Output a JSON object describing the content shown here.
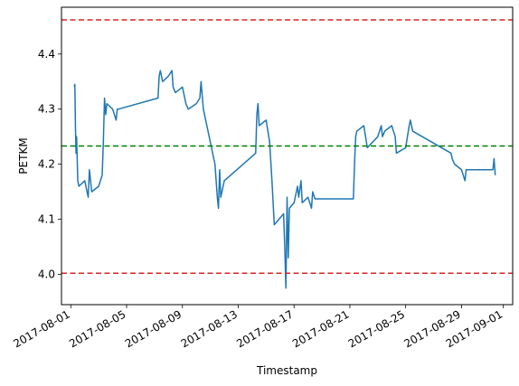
{
  "chart_data": {
    "type": "line",
    "title": "",
    "xlabel": "Timestamp",
    "ylabel": "PETKM",
    "xlim": [
      "2017-07-31T08:00",
      "2017-09-01T16:00"
    ],
    "ylim": [
      3.945,
      4.485
    ],
    "grid": false,
    "legend": "none",
    "x_ticks": [
      "2017-08-01",
      "2017-08-05",
      "2017-08-09",
      "2017-08-13",
      "2017-08-17",
      "2017-08-21",
      "2017-08-25",
      "2017-08-29",
      "2017-09-01"
    ],
    "y_ticks": [
      4.0,
      4.1,
      4.2,
      4.3,
      4.4
    ],
    "y_tick_labels": [
      "4.0",
      "4.1",
      "4.2",
      "4.3",
      "4.4"
    ],
    "reference_lines": [
      {
        "y": 4.462,
        "color": "#d62728",
        "style": "dashed"
      },
      {
        "y": 4.233,
        "color": "#008000",
        "style": "dashed"
      },
      {
        "y": 4.002,
        "color": "#d62728",
        "style": "dashed"
      }
    ],
    "series": [
      {
        "color": "#1f77b4",
        "points": [
          [
            "2017-08-01T06:00",
            4.34
          ],
          [
            "2017-08-01T07:00",
            4.345
          ],
          [
            "2017-08-01T08:00",
            4.27
          ],
          [
            "2017-08-01T09:00",
            4.22
          ],
          [
            "2017-08-01T10:00",
            4.25
          ],
          [
            "2017-08-01T12:00",
            4.17
          ],
          [
            "2017-08-01T14:00",
            4.16
          ],
          [
            "2017-08-02T00:00",
            4.17
          ],
          [
            "2017-08-02T06:00",
            4.14
          ],
          [
            "2017-08-02T08:00",
            4.19
          ],
          [
            "2017-08-02T12:00",
            4.15
          ],
          [
            "2017-08-03T00:00",
            4.16
          ],
          [
            "2017-08-03T06:00",
            4.18
          ],
          [
            "2017-08-03T08:00",
            4.24
          ],
          [
            "2017-08-03T10:00",
            4.32
          ],
          [
            "2017-08-03T12:00",
            4.29
          ],
          [
            "2017-08-03T14:00",
            4.31
          ],
          [
            "2017-08-04T00:00",
            4.3
          ],
          [
            "2017-08-04T06:00",
            4.28
          ],
          [
            "2017-08-04T08:00",
            4.3
          ],
          [
            "2017-08-04T10:00",
            4.3
          ],
          [
            "2017-08-07T06:00",
            4.32
          ],
          [
            "2017-08-07T08:00",
            4.36
          ],
          [
            "2017-08-07T10:00",
            4.37
          ],
          [
            "2017-08-07T14:00",
            4.35
          ],
          [
            "2017-08-08T00:00",
            4.36
          ],
          [
            "2017-08-08T06:00",
            4.37
          ],
          [
            "2017-08-08T08:00",
            4.34
          ],
          [
            "2017-08-08T12:00",
            4.33
          ],
          [
            "2017-08-09T00:00",
            4.34
          ],
          [
            "2017-08-09T06:00",
            4.31
          ],
          [
            "2017-08-09T10:00",
            4.3
          ],
          [
            "2017-08-10T00:00",
            4.31
          ],
          [
            "2017-08-10T06:00",
            4.32
          ],
          [
            "2017-08-10T08:00",
            4.35
          ],
          [
            "2017-08-10T12:00",
            4.3
          ],
          [
            "2017-08-10T14:00",
            4.29
          ],
          [
            "2017-08-11T08:00",
            4.2
          ],
          [
            "2017-08-11T12:00",
            4.14
          ],
          [
            "2017-08-11T14:00",
            4.12
          ],
          [
            "2017-08-11T16:00",
            4.19
          ],
          [
            "2017-08-11T18:00",
            4.14
          ],
          [
            "2017-08-12T00:00",
            4.17
          ],
          [
            "2017-08-14T06:00",
            4.22
          ],
          [
            "2017-08-14T08:00",
            4.29
          ],
          [
            "2017-08-14T10:00",
            4.31
          ],
          [
            "2017-08-14T12:00",
            4.27
          ],
          [
            "2017-08-15T00:00",
            4.28
          ],
          [
            "2017-08-15T06:00",
            4.24
          ],
          [
            "2017-08-15T10:00",
            4.17
          ],
          [
            "2017-08-15T14:00",
            4.09
          ],
          [
            "2017-08-16T06:00",
            4.11
          ],
          [
            "2017-08-16T08:00",
            4.05
          ],
          [
            "2017-08-16T10:00",
            3.975
          ],
          [
            "2017-08-16T12:00",
            4.14
          ],
          [
            "2017-08-16T14:00",
            4.03
          ],
          [
            "2017-08-16T16:00",
            4.12
          ],
          [
            "2017-08-17T00:00",
            4.13
          ],
          [
            "2017-08-17T06:00",
            4.16
          ],
          [
            "2017-08-17T08:00",
            4.14
          ],
          [
            "2017-08-17T12:00",
            4.17
          ],
          [
            "2017-08-17T14:00",
            4.13
          ],
          [
            "2017-08-18T00:00",
            4.14
          ],
          [
            "2017-08-18T06:00",
            4.12
          ],
          [
            "2017-08-18T08:00",
            4.15
          ],
          [
            "2017-08-18T12:00",
            4.137
          ],
          [
            "2017-08-21T06:00",
            4.137
          ],
          [
            "2017-08-21T08:00",
            4.2
          ],
          [
            "2017-08-21T10:00",
            4.25
          ],
          [
            "2017-08-21T12:00",
            4.26
          ],
          [
            "2017-08-22T00:00",
            4.27
          ],
          [
            "2017-08-22T06:00",
            4.23
          ],
          [
            "2017-08-23T00:00",
            4.25
          ],
          [
            "2017-08-23T06:00",
            4.27
          ],
          [
            "2017-08-23T08:00",
            4.25
          ],
          [
            "2017-08-23T12:00",
            4.26
          ],
          [
            "2017-08-24T00:00",
            4.27
          ],
          [
            "2017-08-24T06:00",
            4.25
          ],
          [
            "2017-08-24T08:00",
            4.22
          ],
          [
            "2017-08-25T00:00",
            4.23
          ],
          [
            "2017-08-25T06:00",
            4.27
          ],
          [
            "2017-08-25T08:00",
            4.28
          ],
          [
            "2017-08-25T12:00",
            4.26
          ],
          [
            "2017-08-28T06:00",
            4.22
          ],
          [
            "2017-08-28T08:00",
            4.21
          ],
          [
            "2017-08-28T12:00",
            4.2
          ],
          [
            "2017-08-29T00:00",
            4.19
          ],
          [
            "2017-08-29T06:00",
            4.17
          ],
          [
            "2017-08-29T08:00",
            4.19
          ],
          [
            "2017-08-29T12:00",
            4.19
          ],
          [
            "2017-08-31T06:00",
            4.19
          ],
          [
            "2017-08-31T08:00",
            4.21
          ],
          [
            "2017-08-31T10:00",
            4.18
          ]
        ]
      }
    ]
  }
}
